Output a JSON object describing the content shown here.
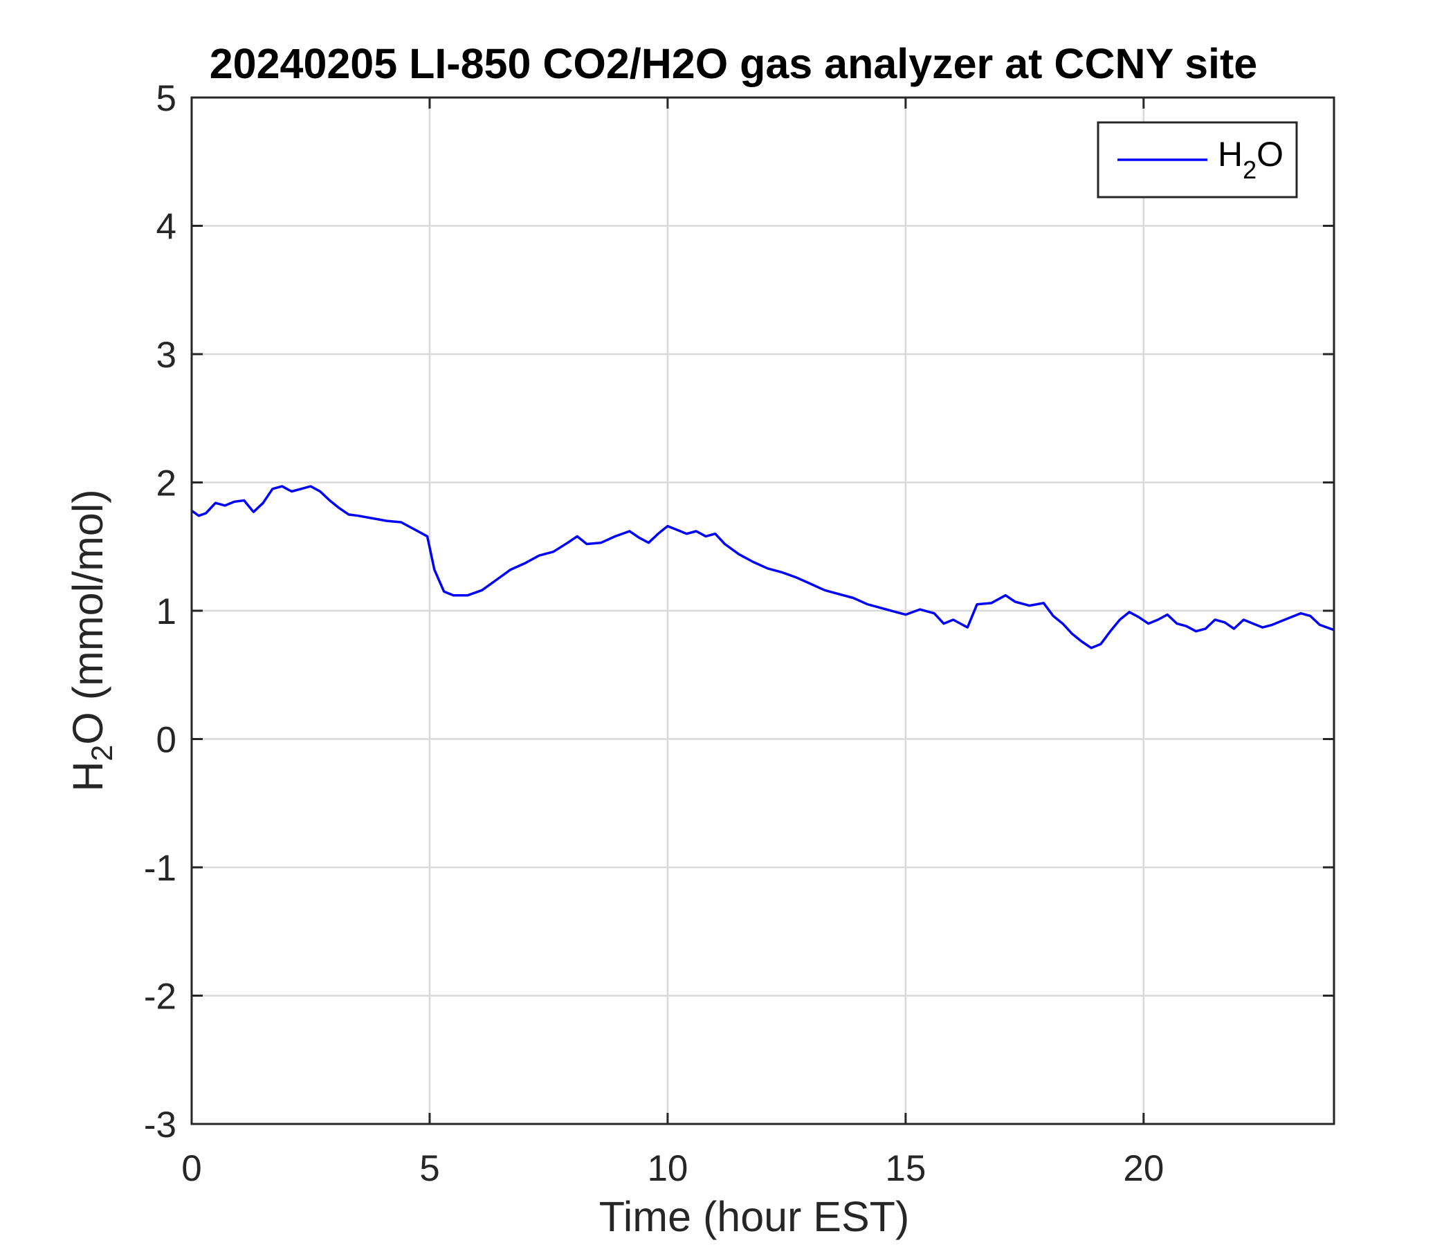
{
  "chart_data": {
    "type": "line",
    "title": "20240205 LI-850 CO2/H2O gas analyzer at CCNY site",
    "xlabel": "Time (hour EST)",
    "ylabel": {
      "base": "H",
      "sub": "2",
      "rest": "O (mmol/mol)"
    },
    "xlim": [
      0,
      24
    ],
    "ylim": [
      -3,
      5
    ],
    "xticks": [
      0,
      5,
      10,
      15,
      20
    ],
    "yticks": [
      -3,
      -2,
      -1,
      0,
      1,
      2,
      3,
      4,
      5
    ],
    "grid": true,
    "legend_position": "top-right",
    "series": [
      {
        "legend": {
          "base": "H",
          "sub": "2",
          "rest": "O"
        },
        "color": "#0000ff",
        "x": [
          0,
          0.15,
          0.3,
          0.5,
          0.7,
          0.9,
          1.1,
          1.3,
          1.5,
          1.7,
          1.9,
          2.1,
          2.3,
          2.5,
          2.7,
          2.9,
          3.1,
          3.3,
          3.5,
          3.8,
          4.1,
          4.4,
          4.7,
          4.95,
          5.1,
          5.3,
          5.5,
          5.8,
          6.1,
          6.4,
          6.7,
          7.0,
          7.3,
          7.6,
          7.9,
          8.1,
          8.3,
          8.6,
          8.9,
          9.2,
          9.4,
          9.6,
          9.8,
          10.0,
          10.2,
          10.4,
          10.6,
          10.8,
          11.0,
          11.2,
          11.5,
          11.8,
          12.1,
          12.4,
          12.7,
          13.0,
          13.3,
          13.6,
          13.9,
          14.2,
          14.5,
          14.8,
          15.0,
          15.3,
          15.6,
          15.8,
          16.0,
          16.3,
          16.5,
          16.8,
          17.1,
          17.3,
          17.6,
          17.9,
          18.1,
          18.3,
          18.5,
          18.7,
          18.9,
          19.1,
          19.3,
          19.5,
          19.7,
          19.9,
          20.1,
          20.3,
          20.5,
          20.7,
          20.9,
          21.1,
          21.3,
          21.5,
          21.7,
          21.9,
          22.1,
          22.3,
          22.5,
          22.7,
          22.9,
          23.1,
          23.3,
          23.5,
          23.7,
          24.0
        ],
        "y": [
          1.78,
          1.74,
          1.76,
          1.84,
          1.82,
          1.85,
          1.86,
          1.77,
          1.84,
          1.95,
          1.97,
          1.93,
          1.95,
          1.97,
          1.93,
          1.86,
          1.8,
          1.75,
          1.74,
          1.72,
          1.7,
          1.69,
          1.63,
          1.58,
          1.32,
          1.15,
          1.12,
          1.12,
          1.16,
          1.24,
          1.32,
          1.37,
          1.43,
          1.46,
          1.53,
          1.58,
          1.52,
          1.53,
          1.58,
          1.62,
          1.57,
          1.53,
          1.6,
          1.66,
          1.63,
          1.6,
          1.62,
          1.58,
          1.6,
          1.52,
          1.44,
          1.38,
          1.33,
          1.3,
          1.26,
          1.21,
          1.16,
          1.13,
          1.1,
          1.05,
          1.02,
          0.99,
          0.97,
          1.01,
          0.98,
          0.9,
          0.93,
          0.87,
          1.05,
          1.06,
          1.12,
          1.07,
          1.04,
          1.06,
          0.96,
          0.9,
          0.82,
          0.76,
          0.71,
          0.74,
          0.84,
          0.93,
          0.99,
          0.95,
          0.9,
          0.93,
          0.97,
          0.9,
          0.88,
          0.84,
          0.86,
          0.93,
          0.91,
          0.86,
          0.93,
          0.9,
          0.87,
          0.89,
          0.92,
          0.95,
          0.98,
          0.96,
          0.89,
          0.85
        ]
      }
    ]
  }
}
